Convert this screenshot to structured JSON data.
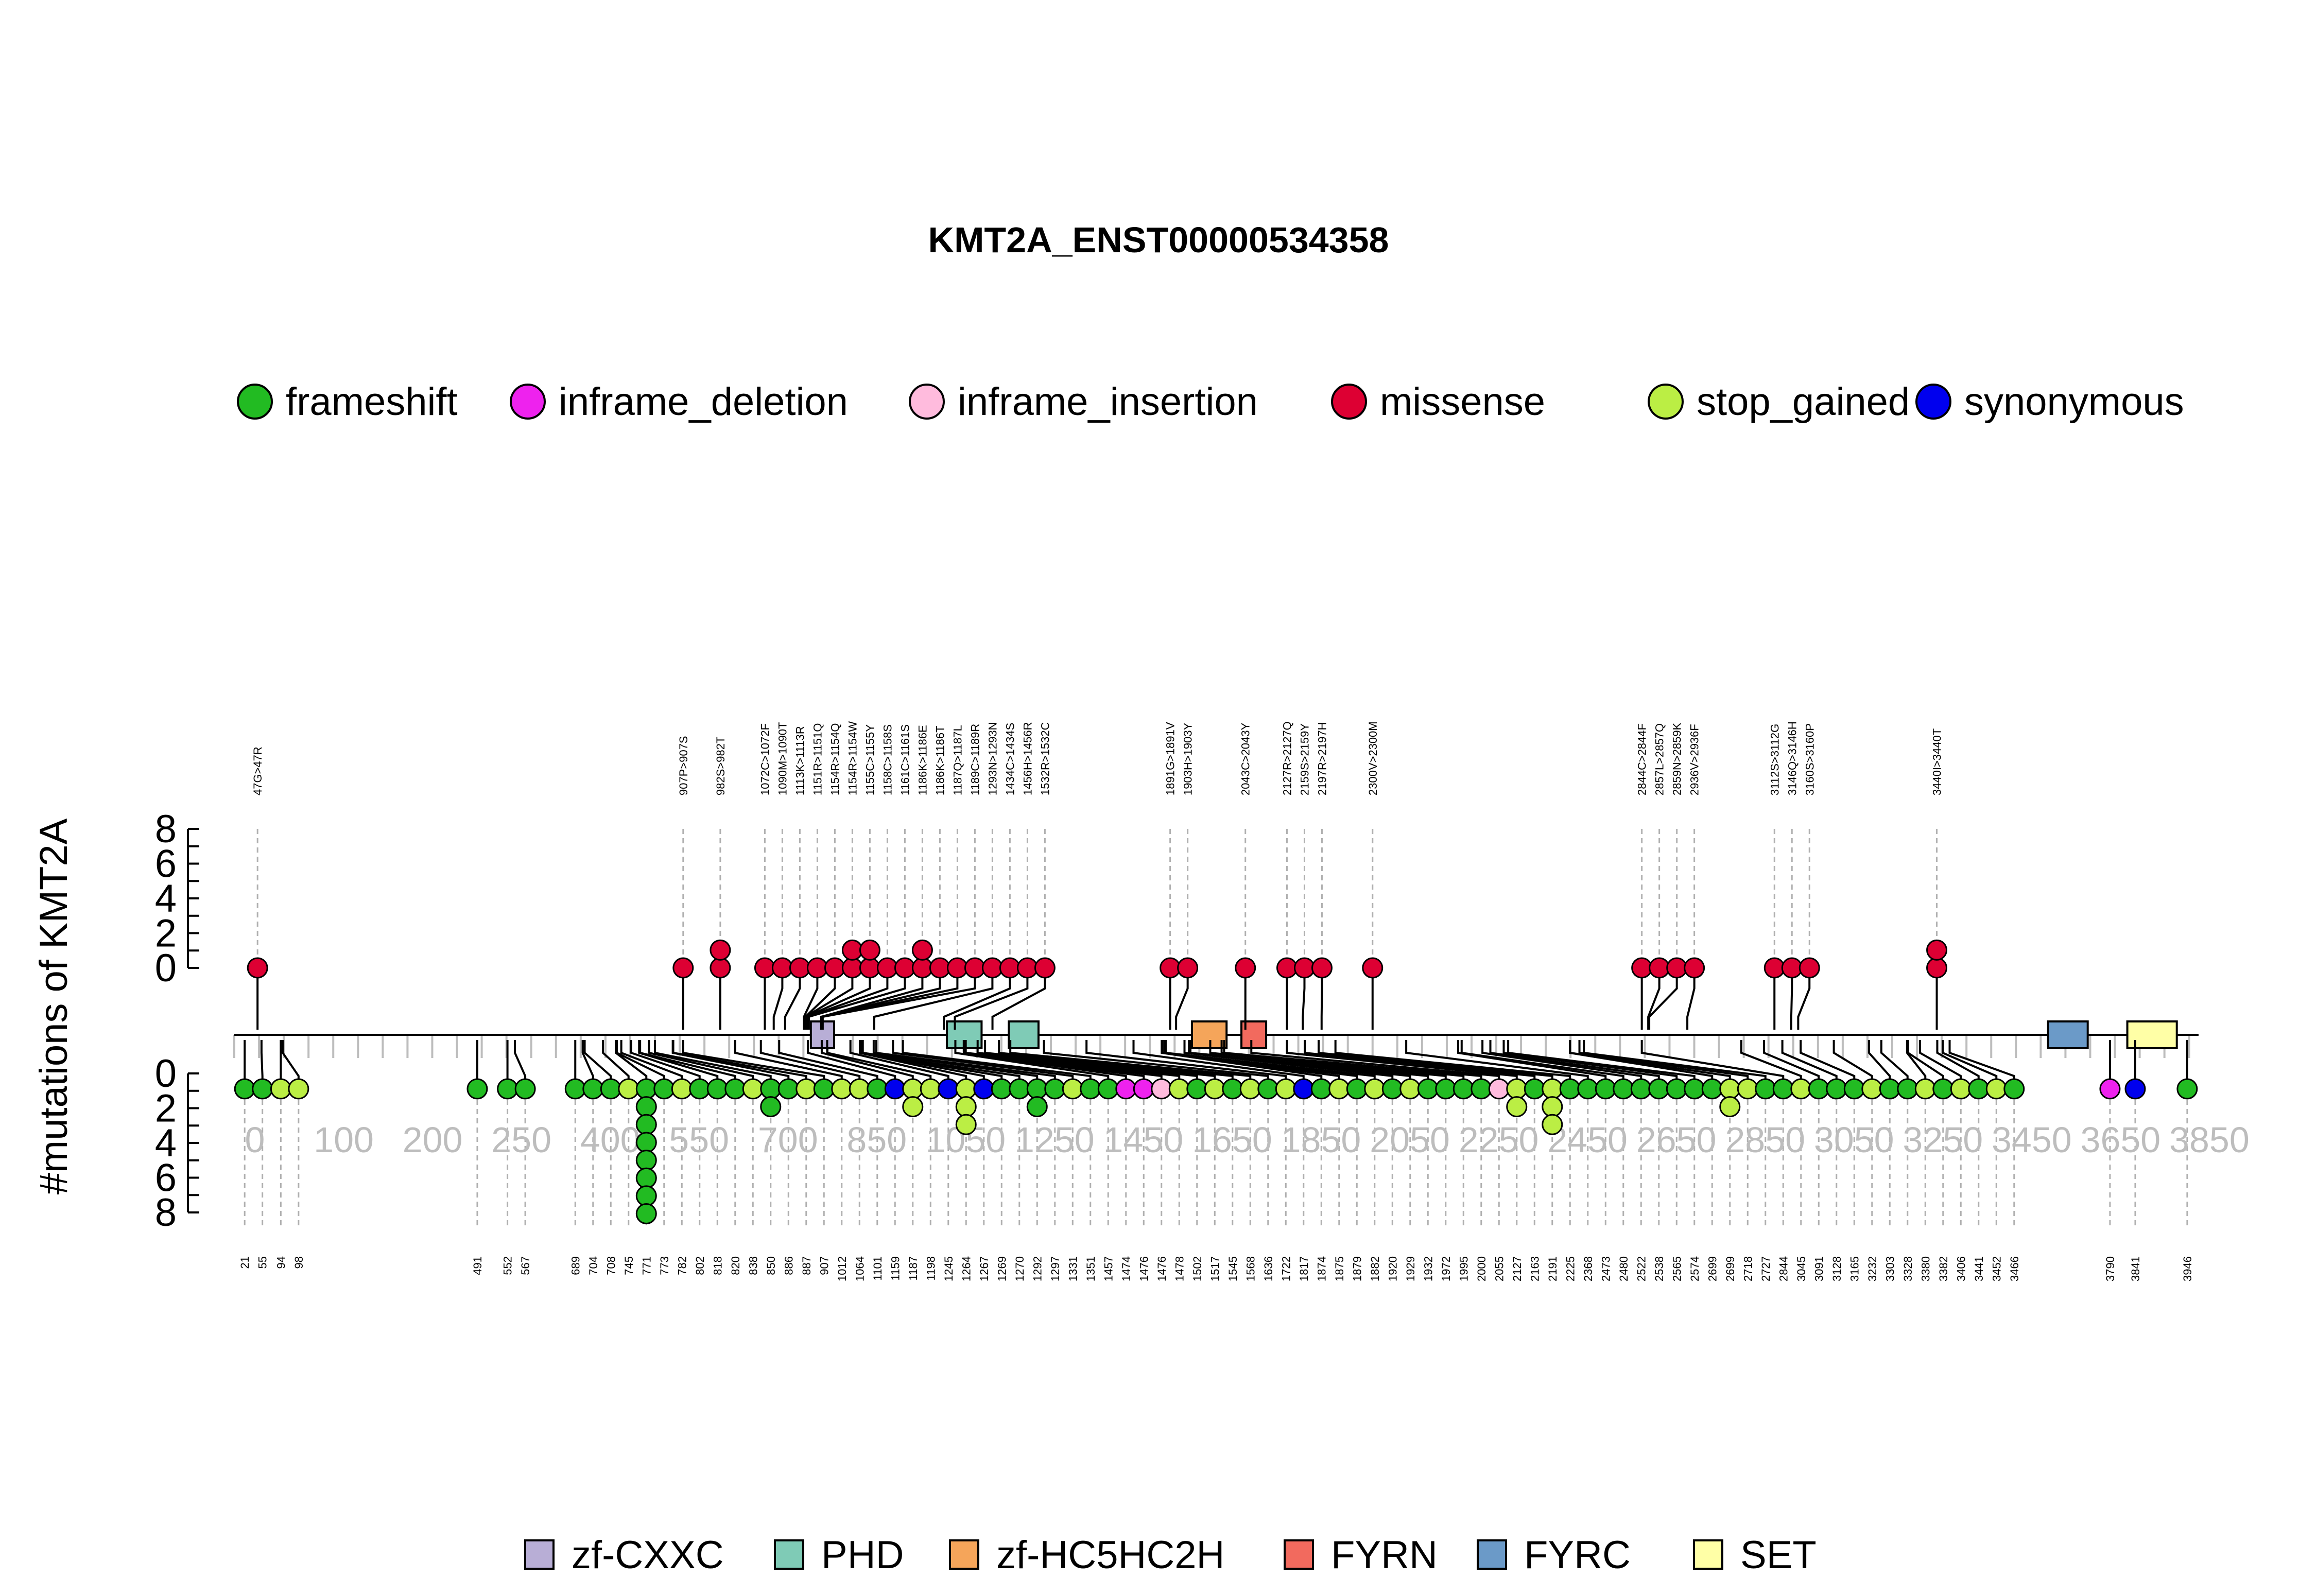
{
  "chart_data": {
    "type": "lollipop",
    "title": "KMT2A_ENST00000534358",
    "ylabel": "#mutations of KMT2A",
    "protein_length": 3969,
    "axis_ticks": [
      "0",
      "100",
      "200",
      "250",
      "400",
      "550",
      "700",
      "850",
      "1050",
      "1250",
      "1450",
      "1650",
      "1850",
      "2050",
      "2250",
      "2450",
      "2650",
      "2850",
      "3050",
      "3250",
      "3450",
      "3650",
      "3850"
    ],
    "y_top_ticks": [
      "8",
      "6",
      "4",
      "2",
      "0"
    ],
    "y_bottom_ticks": [
      "0",
      "2",
      "4",
      "6",
      "8"
    ],
    "legend": [
      {
        "name": "frameshift",
        "color": "#22bb22"
      },
      {
        "name": "inframe_deletion",
        "color": "#ee22ee"
      },
      {
        "name": "inframe_insertion",
        "color": "#ffbbdd"
      },
      {
        "name": "missense",
        "color": "#dd0033"
      },
      {
        "name": "stop_gained",
        "color": "#bbee44"
      },
      {
        "name": "synonymous",
        "color": "#0000ee"
      }
    ],
    "domains": [
      {
        "name": "zf-CXXC",
        "color": "#b8aed6",
        "start": 1165,
        "end": 1212
      },
      {
        "name": "PHD",
        "color": "#7fcbb6",
        "start": 1440,
        "end": 1510
      },
      {
        "name": "PHD",
        "color": "#7fcbb6",
        "start": 1565,
        "end": 1625
      },
      {
        "name": "zf-HC5HC2H",
        "color": "#f5a55a",
        "start": 1935,
        "end": 2005
      },
      {
        "name": "FYRN",
        "color": "#f26a5e",
        "start": 2035,
        "end": 2085
      },
      {
        "name": "FYRC",
        "color": "#6b9ac8",
        "start": 3665,
        "end": 3745
      },
      {
        "name": "SET",
        "color": "#ffffa6",
        "start": 3825,
        "end": 3925
      }
    ],
    "missense": [
      {
        "label": "47G>47R",
        "pos": 47,
        "count": 1
      },
      {
        "label": "907P>907S",
        "pos": 907,
        "count": 1
      },
      {
        "label": "982S>982T",
        "pos": 982,
        "count": 2
      },
      {
        "label": "1072C>1072F",
        "pos": 1072,
        "count": 1
      },
      {
        "label": "1090M>1090T",
        "pos": 1090,
        "count": 1
      },
      {
        "label": "1113K>1113R",
        "pos": 1113,
        "count": 1
      },
      {
        "label": "1151R>1151Q",
        "pos": 1151,
        "count": 1
      },
      {
        "label": "1154R>1154Q",
        "pos": 1154,
        "count": 1
      },
      {
        "label": "1154R>1154W",
        "pos": 1154,
        "count": 2
      },
      {
        "label": "1155C>1155Y",
        "pos": 1155,
        "count": 2
      },
      {
        "label": "1158C>1158S",
        "pos": 1158,
        "count": 1
      },
      {
        "label": "1161C>1161S",
        "pos": 1161,
        "count": 1
      },
      {
        "label": "1186K>1186E",
        "pos": 1186,
        "count": 2
      },
      {
        "label": "1186K>1186T",
        "pos": 1186,
        "count": 1
      },
      {
        "label": "1187Q>1187L",
        "pos": 1187,
        "count": 1
      },
      {
        "label": "1189C>1189R",
        "pos": 1189,
        "count": 1
      },
      {
        "label": "1293N>1293N",
        "pos": 1293,
        "count": 1
      },
      {
        "label": "1434C>1434S",
        "pos": 1434,
        "count": 1
      },
      {
        "label": "1456H>1456R",
        "pos": 1456,
        "count": 1
      },
      {
        "label": "1532R>1532C",
        "pos": 1532,
        "count": 1
      },
      {
        "label": "1891G>1891V",
        "pos": 1891,
        "count": 1
      },
      {
        "label": "1903H>1903Y",
        "pos": 1903,
        "count": 1
      },
      {
        "label": "2043C>2043Y",
        "pos": 2043,
        "count": 1
      },
      {
        "label": "2127R>2127Q",
        "pos": 2127,
        "count": 1
      },
      {
        "label": "2159S>2159Y",
        "pos": 2159,
        "count": 1
      },
      {
        "label": "2197R>2197H",
        "pos": 2197,
        "count": 1
      },
      {
        "label": "2300V>2300M",
        "pos": 2300,
        "count": 1
      },
      {
        "label": "2844C>2844F",
        "pos": 2844,
        "count": 1
      },
      {
        "label": "2857L>2857Q",
        "pos": 2857,
        "count": 1
      },
      {
        "label": "2859N>2859K",
        "pos": 2859,
        "count": 1
      },
      {
        "label": "2936V>2936F",
        "pos": 2936,
        "count": 1
      },
      {
        "label": "3112S>3112G",
        "pos": 3112,
        "count": 1
      },
      {
        "label": "3146Q>3146H",
        "pos": 3146,
        "count": 1
      },
      {
        "label": "3160S>3160P",
        "pos": 3160,
        "count": 1
      },
      {
        "label": "3440I>3440T",
        "pos": 3440,
        "count": 2
      }
    ],
    "lower": [
      {
        "label": "21",
        "pos": 21,
        "type": "frameshift",
        "count": 1
      },
      {
        "label": "55",
        "pos": 55,
        "type": "frameshift",
        "count": 1
      },
      {
        "label": "94",
        "pos": 94,
        "type": "stop_gained",
        "count": 1
      },
      {
        "label": "98",
        "pos": 98,
        "type": "stop_gained",
        "count": 1
      },
      {
        "label": "491",
        "pos": 491,
        "type": "frameshift",
        "count": 1
      },
      {
        "label": "552",
        "pos": 552,
        "type": "frameshift",
        "count": 1
      },
      {
        "label": "567",
        "pos": 567,
        "type": "frameshift",
        "count": 1
      },
      {
        "label": "689",
        "pos": 689,
        "type": "frameshift",
        "count": 1
      },
      {
        "label": "704",
        "pos": 704,
        "type": "frameshift",
        "count": 1
      },
      {
        "label": "708",
        "pos": 708,
        "type": "frameshift",
        "count": 1
      },
      {
        "label": "745",
        "pos": 745,
        "type": "stop_gained",
        "count": 1
      },
      {
        "label": "771",
        "pos": 771,
        "type": "frameshift",
        "count": 8
      },
      {
        "label": "773",
        "pos": 773,
        "type": "frameshift",
        "count": 1
      },
      {
        "label": "782",
        "pos": 782,
        "type": "stop_gained",
        "count": 1
      },
      {
        "label": "802",
        "pos": 802,
        "type": "frameshift",
        "count": 1
      },
      {
        "label": "818",
        "pos": 818,
        "type": "frameshift",
        "count": 1
      },
      {
        "label": "820",
        "pos": 820,
        "type": "frameshift",
        "count": 1
      },
      {
        "label": "838",
        "pos": 838,
        "type": "stop_gained",
        "count": 1
      },
      {
        "label": "850",
        "pos": 850,
        "type": "frameshift",
        "count": 2
      },
      {
        "label": "886",
        "pos": 886,
        "type": "frameshift",
        "count": 1
      },
      {
        "label": "887",
        "pos": 887,
        "type": "stop_gained",
        "count": 1
      },
      {
        "label": "907",
        "pos": 907,
        "type": "frameshift",
        "count": 1
      },
      {
        "label": "1012",
        "pos": 1012,
        "type": "stop_gained",
        "count": 1
      },
      {
        "label": "1064",
        "pos": 1064,
        "type": "stop_gained",
        "count": 1
      },
      {
        "label": "1101",
        "pos": 1101,
        "type": "frameshift",
        "count": 1
      },
      {
        "label": "1159",
        "pos": 1159,
        "type": "synonymous",
        "count": 1
      },
      {
        "label": "1187",
        "pos": 1187,
        "type": "stop_gained",
        "count": 2
      },
      {
        "label": "1198",
        "pos": 1198,
        "type": "stop_gained",
        "count": 1
      },
      {
        "label": "1245",
        "pos": 1245,
        "type": "synonymous",
        "count": 1
      },
      {
        "label": "1264",
        "pos": 1264,
        "type": "stop_gained",
        "count": 3
      },
      {
        "label": "1267",
        "pos": 1267,
        "type": "synonymous",
        "count": 1
      },
      {
        "label": "1269",
        "pos": 1269,
        "type": "frameshift",
        "count": 1
      },
      {
        "label": "1270",
        "pos": 1270,
        "type": "frameshift",
        "count": 1
      },
      {
        "label": "1292",
        "pos": 1292,
        "type": "frameshift",
        "count": 2
      },
      {
        "label": "1297",
        "pos": 1297,
        "type": "frameshift",
        "count": 1
      },
      {
        "label": "1331",
        "pos": 1331,
        "type": "stop_gained",
        "count": 1
      },
      {
        "label": "1351",
        "pos": 1351,
        "type": "frameshift",
        "count": 1
      },
      {
        "label": "1457",
        "pos": 1457,
        "type": "frameshift",
        "count": 1
      },
      {
        "label": "1474",
        "pos": 1474,
        "type": "inframe_deletion",
        "count": 1
      },
      {
        "label": "1476",
        "pos": 1476,
        "type": "inframe_deletion",
        "count": 1
      },
      {
        "label": "1476",
        "pos": 1476,
        "type": "inframe_insertion",
        "count": 1
      },
      {
        "label": "1478",
        "pos": 1478,
        "type": "stop_gained",
        "count": 1
      },
      {
        "label": "1502",
        "pos": 1502,
        "type": "frameshift",
        "count": 1
      },
      {
        "label": "1517",
        "pos": 1517,
        "type": "stop_gained",
        "count": 1
      },
      {
        "label": "1545",
        "pos": 1545,
        "type": "frameshift",
        "count": 1
      },
      {
        "label": "1568",
        "pos": 1568,
        "type": "stop_gained",
        "count": 1
      },
      {
        "label": "1636",
        "pos": 1636,
        "type": "frameshift",
        "count": 1
      },
      {
        "label": "1722",
        "pos": 1722,
        "type": "stop_gained",
        "count": 1
      },
      {
        "label": "1817",
        "pos": 1817,
        "type": "synonymous",
        "count": 1
      },
      {
        "label": "1874",
        "pos": 1874,
        "type": "frameshift",
        "count": 1
      },
      {
        "label": "1875",
        "pos": 1875,
        "type": "stop_gained",
        "count": 1
      },
      {
        "label": "1879",
        "pos": 1879,
        "type": "frameshift",
        "count": 1
      },
      {
        "label": "1882",
        "pos": 1882,
        "type": "stop_gained",
        "count": 1
      },
      {
        "label": "1920",
        "pos": 1920,
        "type": "frameshift",
        "count": 1
      },
      {
        "label": "1929",
        "pos": 1929,
        "type": "stop_gained",
        "count": 1
      },
      {
        "label": "1932",
        "pos": 1932,
        "type": "frameshift",
        "count": 1
      },
      {
        "label": "1972",
        "pos": 1972,
        "type": "frameshift",
        "count": 1
      },
      {
        "label": "1995",
        "pos": 1995,
        "type": "frameshift",
        "count": 1
      },
      {
        "label": "2000",
        "pos": 2000,
        "type": "frameshift",
        "count": 1
      },
      {
        "label": "2055",
        "pos": 2055,
        "type": "inframe_insertion",
        "count": 1
      },
      {
        "label": "2127",
        "pos": 2127,
        "type": "stop_gained",
        "count": 2
      },
      {
        "label": "2163",
        "pos": 2163,
        "type": "frameshift",
        "count": 1
      },
      {
        "label": "2191",
        "pos": 2191,
        "type": "stop_gained",
        "count": 3
      },
      {
        "label": "2225",
        "pos": 2225,
        "type": "frameshift",
        "count": 1
      },
      {
        "label": "2368",
        "pos": 2368,
        "type": "frameshift",
        "count": 1
      },
      {
        "label": "2473",
        "pos": 2473,
        "type": "frameshift",
        "count": 1
      },
      {
        "label": "2480",
        "pos": 2480,
        "type": "frameshift",
        "count": 1
      },
      {
        "label": "2522",
        "pos": 2522,
        "type": "frameshift",
        "count": 1
      },
      {
        "label": "2538",
        "pos": 2538,
        "type": "frameshift",
        "count": 1
      },
      {
        "label": "2565",
        "pos": 2565,
        "type": "frameshift",
        "count": 1
      },
      {
        "label": "2574",
        "pos": 2574,
        "type": "frameshift",
        "count": 1
      },
      {
        "label": "2699",
        "pos": 2699,
        "type": "frameshift",
        "count": 1
      },
      {
        "label": "2699",
        "pos": 2699,
        "type": "stop_gained",
        "count": 2
      },
      {
        "label": "2718",
        "pos": 2718,
        "type": "stop_gained",
        "count": 1
      },
      {
        "label": "2727",
        "pos": 2727,
        "type": "frameshift",
        "count": 1
      },
      {
        "label": "2844",
        "pos": 2844,
        "type": "frameshift",
        "count": 1
      },
      {
        "label": "3045",
        "pos": 3045,
        "type": "stop_gained",
        "count": 1
      },
      {
        "label": "3091",
        "pos": 3091,
        "type": "frameshift",
        "count": 1
      },
      {
        "label": "3128",
        "pos": 3128,
        "type": "frameshift",
        "count": 1
      },
      {
        "label": "3165",
        "pos": 3165,
        "type": "frameshift",
        "count": 1
      },
      {
        "label": "3232",
        "pos": 3232,
        "type": "stop_gained",
        "count": 1
      },
      {
        "label": "3303",
        "pos": 3303,
        "type": "frameshift",
        "count": 1
      },
      {
        "label": "3328",
        "pos": 3328,
        "type": "frameshift",
        "count": 1
      },
      {
        "label": "3380",
        "pos": 3380,
        "type": "stop_gained",
        "count": 1
      },
      {
        "label": "3382",
        "pos": 3382,
        "type": "frameshift",
        "count": 1
      },
      {
        "label": "3406",
        "pos": 3406,
        "type": "stop_gained",
        "count": 1
      },
      {
        "label": "3441",
        "pos": 3441,
        "type": "frameshift",
        "count": 1
      },
      {
        "label": "3452",
        "pos": 3452,
        "type": "stop_gained",
        "count": 1
      },
      {
        "label": "3466",
        "pos": 3466,
        "type": "frameshift",
        "count": 1
      },
      {
        "label": "3790",
        "pos": 3790,
        "type": "inframe_deletion",
        "count": 1
      },
      {
        "label": "3841",
        "pos": 3841,
        "type": "synonymous",
        "count": 1
      },
      {
        "label": "3946",
        "pos": 3946,
        "type": "frameshift",
        "count": 1
      }
    ]
  }
}
